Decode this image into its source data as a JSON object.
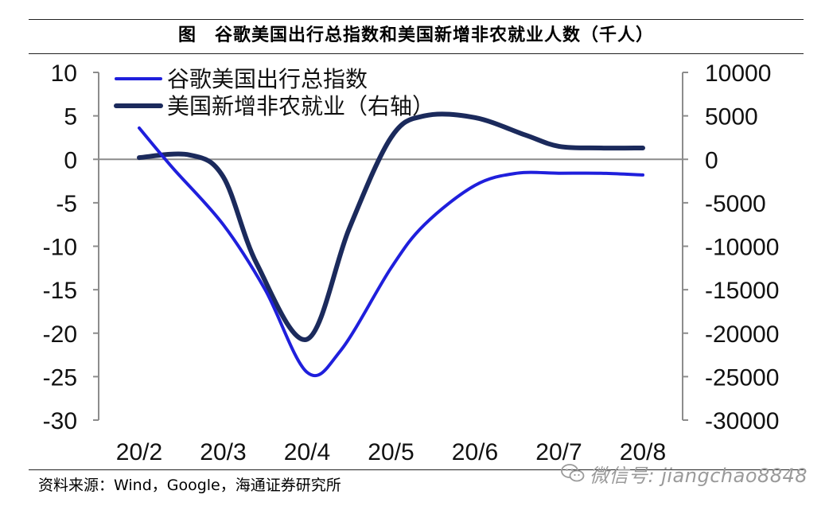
{
  "title": "图　谷歌美国出行总指数和美国新增非农就业人数（千人）",
  "source": "资料来源：Wind，Google，海通证券研究所",
  "watermark": "微信号: jiangchao8848",
  "chart_data": {
    "type": "line",
    "x_ticks": [
      "20/2",
      "20/3",
      "20/4",
      "20/5",
      "20/6",
      "20/7",
      "20/8"
    ],
    "y_left": {
      "ticks": [
        10,
        5,
        0,
        -5,
        -10,
        -15,
        -20,
        -25,
        -30
      ],
      "range": [
        -30,
        10
      ]
    },
    "y_right": {
      "ticks": [
        10000,
        5000,
        0,
        -5000,
        -10000,
        -15000,
        -20000,
        -25000,
        -30000
      ],
      "range": [
        -30000,
        10000
      ]
    },
    "grid": false,
    "legend_position": "top-left",
    "series": [
      {
        "name": "谷歌美国出行总指数",
        "axis": "left",
        "color": "#1f1fdc",
        "x": [
          0.0,
          0.4,
          1.0,
          1.5,
          2.0,
          2.4,
          3.0,
          3.4,
          4.0,
          4.5,
          5.0,
          5.5,
          6.0
        ],
        "y": [
          3.6,
          -1.0,
          -7.5,
          -15.0,
          -24.5,
          -22.0,
          -12.5,
          -7.5,
          -3.0,
          -1.6,
          -1.6,
          -1.6,
          -1.8
        ]
      },
      {
        "name": "美国新增非农就业（右轴）",
        "axis": "right",
        "color": "#1b2a5c",
        "x": [
          0.0,
          0.6,
          1.0,
          1.4,
          2.0,
          2.5,
          3.0,
          3.4,
          4.0,
          4.6,
          5.0,
          5.5,
          6.0
        ],
        "y": [
          200,
          500,
          -2000,
          -12000,
          -20700,
          -8000,
          2500,
          5000,
          4800,
          2800,
          1500,
          1300,
          1300
        ]
      }
    ]
  }
}
